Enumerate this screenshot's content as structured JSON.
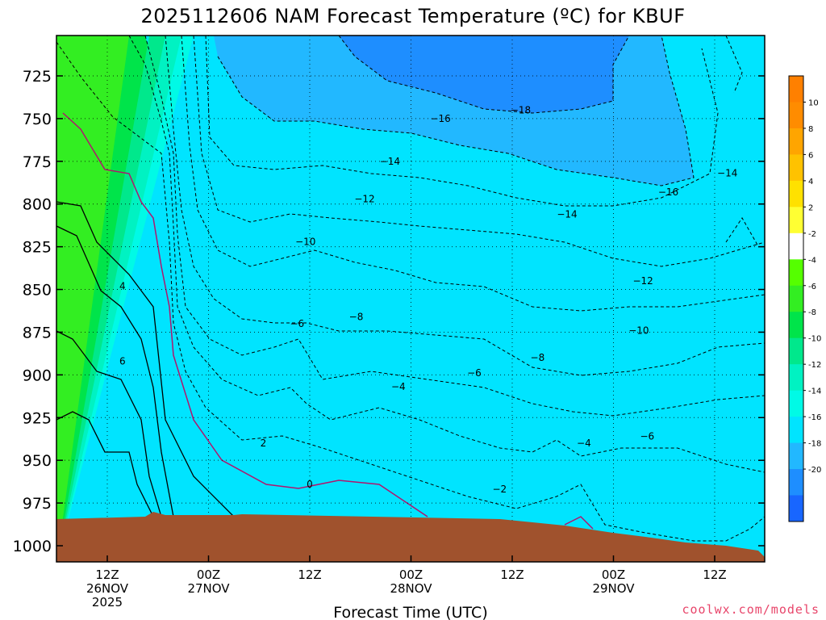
{
  "chart_data": {
    "type": "heatmap",
    "title": "2025112606 NAM Forecast Temperature (ºC) for KBUF",
    "xlabel": "Forecast Time (UTC)",
    "ylabel": "",
    "y_ticks": [
      725,
      750,
      775,
      800,
      825,
      850,
      875,
      900,
      925,
      950,
      975,
      1000
    ],
    "y_labels": [
      "725",
      "750",
      "775",
      "800",
      "825",
      "850",
      "875",
      "900",
      "925",
      "950",
      "975",
      "1000"
    ],
    "x_ticks": [
      {
        "hour": 0,
        "lines": [
          "12Z",
          "26NOV",
          "2025"
        ]
      },
      {
        "hour": 12,
        "lines": [
          "00Z",
          "27NOV"
        ]
      },
      {
        "hour": 24,
        "lines": [
          "12Z"
        ]
      },
      {
        "hour": 36,
        "lines": [
          "00Z",
          "28NOV"
        ]
      },
      {
        "hour": 48,
        "lines": [
          "12Z"
        ]
      },
      {
        "hour": 60,
        "lines": [
          "00Z",
          "29NOV"
        ]
      },
      {
        "hour": 72,
        "lines": [
          "12Z"
        ]
      }
    ],
    "grid": true,
    "colorbar": {
      "placement": "right",
      "levels": [
        12,
        10,
        8,
        6,
        4,
        2,
        -2,
        -4,
        -6,
        -8,
        -10,
        -12,
        -14,
        -16,
        -18,
        -20,
        -22
      ],
      "labels": [
        "10",
        "8",
        "6",
        "4",
        "2",
        "-2",
        "-4",
        "-6",
        "-8",
        "-10",
        "-12",
        "-14",
        "-16",
        "-18",
        "-20"
      ],
      "colors": [
        "#FF8000",
        "#FF8C00",
        "#FFA500",
        "#FFC200",
        "#FFE100",
        "#FFFF33",
        "#FFFFFF",
        "#55FF00",
        "#33EE22",
        "#00E44A",
        "#00E88C",
        "#00F2C2",
        "#00FAE6",
        "#00E4FF",
        "#22B8FF",
        "#1E8EFF",
        "#1866FF"
      ]
    },
    "fill_regions": [
      {
        "name": "t-6",
        "temp": 6,
        "color": "#FF8C00"
      },
      {
        "name": "t-4",
        "temp": 4,
        "color": "#FFA500"
      },
      {
        "name": "t-2",
        "temp": 2,
        "color": "#FFC200"
      },
      {
        "name": "t-0",
        "temp": 0,
        "color": "#FFFF33"
      },
      {
        "name": "t-m2",
        "temp": -2,
        "color": "#55FF00"
      },
      {
        "name": "t-m4",
        "temp": -4,
        "color": "#33EE22"
      },
      {
        "name": "t-m6",
        "temp": -6,
        "color": "#00E44A"
      },
      {
        "name": "t-m8",
        "temp": -8,
        "color": "#00E88C"
      },
      {
        "name": "t-m10",
        "temp": -10,
        "color": "#00F2C2"
      },
      {
        "name": "t-m12",
        "temp": -12,
        "color": "#00FAE6"
      },
      {
        "name": "t-m14",
        "temp": -14,
        "color": "#00E4FF"
      },
      {
        "name": "t-m16",
        "temp": -16,
        "color": "#22B8FF"
      },
      {
        "name": "t-m18",
        "temp": -18,
        "color": "#1E8EFF"
      }
    ],
    "contour_labels": [
      {
        "text": "4",
        "hour": 1.8,
        "p": 848
      },
      {
        "text": "6",
        "hour": 1.8,
        "p": 892
      },
      {
        "text": "2",
        "hour": 18.5,
        "p": 940
      },
      {
        "text": "0",
        "hour": 24,
        "p": 964
      },
      {
        "text": "−2",
        "hour": 46.5,
        "p": 967
      },
      {
        "text": "−4",
        "hour": 34.5,
        "p": 907
      },
      {
        "text": "−6",
        "hour": 22.5,
        "p": 870
      },
      {
        "text": "−8",
        "hour": 29.5,
        "p": 866
      },
      {
        "text": "−10",
        "hour": 23.5,
        "p": 822
      },
      {
        "text": "−12",
        "hour": 30.5,
        "p": 797
      },
      {
        "text": "−14",
        "hour": 33.5,
        "p": 775
      },
      {
        "text": "−16",
        "hour": 39.5,
        "p": 750
      },
      {
        "text": "−18",
        "hour": 49,
        "p": 745
      },
      {
        "text": "−6",
        "hour": 43.5,
        "p": 899
      },
      {
        "text": "−8",
        "hour": 51,
        "p": 890
      },
      {
        "text": "−4",
        "hour": 56.5,
        "p": 940
      },
      {
        "text": "−6",
        "hour": 64,
        "p": 936
      },
      {
        "text": "−10",
        "hour": 63,
        "p": 874
      },
      {
        "text": "−12",
        "hour": 63.5,
        "p": 845
      },
      {
        "text": "−14",
        "hour": 54.5,
        "p": 806
      },
      {
        "text": "−16",
        "hour": 66.5,
        "p": 793
      },
      {
        "text": "−14",
        "hour": 73.5,
        "p": 782
      }
    ],
    "terrain_color": "#A0522D"
  },
  "credit": "coolwx.com/models"
}
